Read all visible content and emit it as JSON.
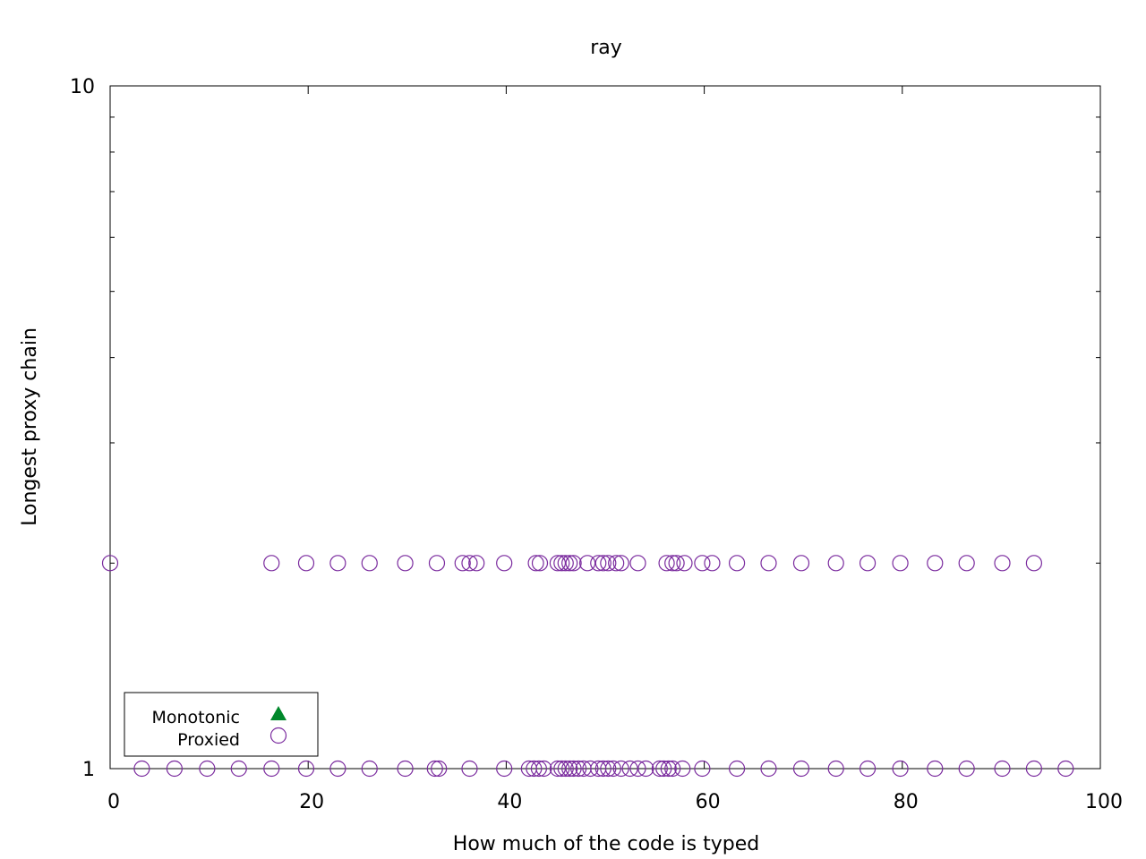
{
  "chart_data": {
    "type": "scatter",
    "title": "ray",
    "xlabel": "How much of the code is typed",
    "ylabel": "Longest proxy chain",
    "xlim": [
      0,
      100
    ],
    "ylim": [
      1,
      10
    ],
    "yscale": "log",
    "x_ticks": [
      "0",
      "20",
      "40",
      "60",
      "80",
      "100"
    ],
    "y_ticks": [
      "1",
      "10"
    ],
    "grid": false,
    "legend_position": "bottom-left",
    "series": [
      {
        "name": "Monotonic",
        "marker": "filled-triangle",
        "color": "#00882b",
        "points": []
      },
      {
        "name": "Proxied",
        "marker": "open-circle",
        "color": "#7a2a9e",
        "points": [
          [
            0,
            2
          ],
          [
            16.3,
            2
          ],
          [
            19.8,
            2
          ],
          [
            23,
            2
          ],
          [
            26.2,
            2
          ],
          [
            29.8,
            2
          ],
          [
            33,
            2
          ],
          [
            35.6,
            2
          ],
          [
            36.3,
            2
          ],
          [
            37,
            2
          ],
          [
            39.8,
            2
          ],
          [
            43,
            2
          ],
          [
            43.4,
            2
          ],
          [
            45.2,
            2
          ],
          [
            45.6,
            2
          ],
          [
            46,
            2
          ],
          [
            46.4,
            2
          ],
          [
            46.8,
            2
          ],
          [
            48.2,
            2
          ],
          [
            49.3,
            2
          ],
          [
            49.8,
            2
          ],
          [
            50.3,
            2
          ],
          [
            51.1,
            2
          ],
          [
            51.6,
            2
          ],
          [
            53.3,
            2
          ],
          [
            56.2,
            2
          ],
          [
            56.8,
            2
          ],
          [
            57.2,
            2
          ],
          [
            58,
            2
          ],
          [
            59.8,
            2
          ],
          [
            60.8,
            2
          ],
          [
            63.3,
            2
          ],
          [
            66.5,
            2
          ],
          [
            69.8,
            2
          ],
          [
            73.3,
            2
          ],
          [
            76.5,
            2
          ],
          [
            79.8,
            2
          ],
          [
            83.3,
            2
          ],
          [
            86.5,
            2
          ],
          [
            90.1,
            2
          ],
          [
            93.3,
            2
          ],
          [
            3.2,
            1
          ],
          [
            6.5,
            1
          ],
          [
            9.8,
            1
          ],
          [
            13,
            1
          ],
          [
            16.3,
            1
          ],
          [
            19.8,
            1
          ],
          [
            23,
            1
          ],
          [
            26.2,
            1
          ],
          [
            29.8,
            1
          ],
          [
            32.8,
            1
          ],
          [
            33.2,
            1
          ],
          [
            36.3,
            1
          ],
          [
            39.8,
            1
          ],
          [
            42.3,
            1
          ],
          [
            42.8,
            1
          ],
          [
            43.3,
            1
          ],
          [
            43.8,
            1
          ],
          [
            45.2,
            1
          ],
          [
            45.6,
            1
          ],
          [
            46,
            1
          ],
          [
            46.4,
            1
          ],
          [
            46.8,
            1
          ],
          [
            47.3,
            1
          ],
          [
            47.8,
            1
          ],
          [
            48.5,
            1
          ],
          [
            49.3,
            1
          ],
          [
            49.8,
            1
          ],
          [
            50.3,
            1
          ],
          [
            50.8,
            1
          ],
          [
            51.6,
            1
          ],
          [
            52.5,
            1
          ],
          [
            53.3,
            1
          ],
          [
            54.1,
            1
          ],
          [
            55.5,
            1
          ],
          [
            55.9,
            1
          ],
          [
            56.4,
            1
          ],
          [
            56.8,
            1
          ],
          [
            57.8,
            1
          ],
          [
            59.8,
            1
          ],
          [
            63.3,
            1
          ],
          [
            66.5,
            1
          ],
          [
            69.8,
            1
          ],
          [
            73.3,
            1
          ],
          [
            76.5,
            1
          ],
          [
            79.8,
            1
          ],
          [
            83.3,
            1
          ],
          [
            86.5,
            1
          ],
          [
            90.1,
            1
          ],
          [
            93.3,
            1
          ],
          [
            96.5,
            1
          ]
        ]
      }
    ]
  }
}
